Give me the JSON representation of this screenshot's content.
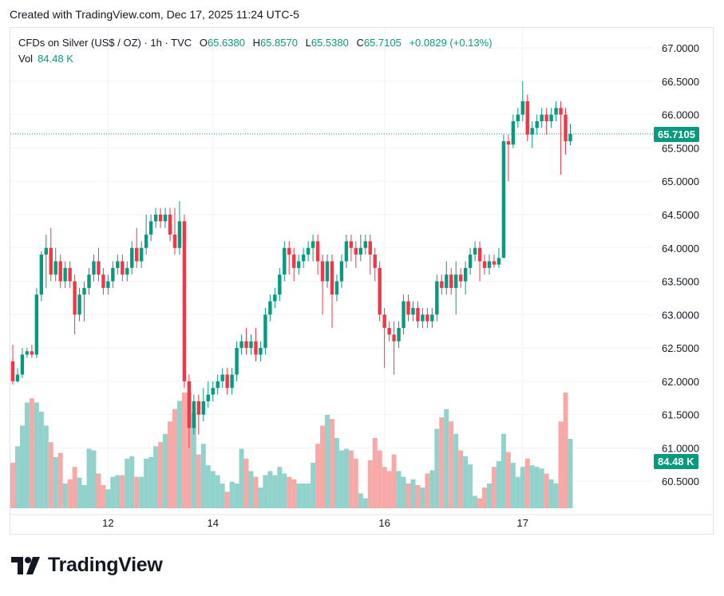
{
  "header": {
    "created": "Created with TradingView.com, Dec 17, 2025 11:24 UTC-5"
  },
  "legend": {
    "symbol": "CFDs on Silver (US$ / OZ) · 1h · TVC",
    "o_label": "O",
    "o_value": "65.6380",
    "h_label": "H",
    "h_value": "65.8570",
    "l_label": "L",
    "l_value": "65.5380",
    "c_label": "C",
    "c_value": "65.7105",
    "change": "+0.0829 (+0.13%)",
    "vol_label": "Vol",
    "vol_value": "84.48 K"
  },
  "badges": {
    "price": "65.7105",
    "volume": "84.48 K"
  },
  "footer": {
    "brand": "TradingView"
  },
  "colors": {
    "up": "#089981",
    "down": "#f23645",
    "up_vol": "#92d2cc",
    "down_vol": "#f7a9a7",
    "grid": "#f0f3fa",
    "text": "#131722"
  },
  "chart_data": {
    "type": "candlestick",
    "title": "CFDs on Silver (US$ / OZ) · 1h · TVC",
    "ylim": [
      60.0,
      67.3
    ],
    "y_ticks": [
      "60.5000",
      "61.0000",
      "61.5000",
      "62.0000",
      "62.5000",
      "63.0000",
      "63.5000",
      "64.0000",
      "64.5000",
      "65.0000",
      "65.5000",
      "66.0000",
      "66.5000",
      "67.0000"
    ],
    "x_ticks": [
      {
        "label": "12",
        "index": 20
      },
      {
        "label": "14",
        "index": 42
      },
      {
        "label": "16",
        "index": 78
      },
      {
        "label": "17",
        "index": 107
      }
    ],
    "last_price": 65.7105,
    "volume_max_k": 140,
    "candles": [
      [
        62.3,
        62.0,
        62.55,
        61.95,
        55
      ],
      [
        62.0,
        62.1,
        62.2,
        61.98,
        75
      ],
      [
        62.1,
        62.4,
        62.5,
        62.05,
        100
      ],
      [
        62.4,
        62.45,
        62.5,
        62.35,
        128
      ],
      [
        62.45,
        62.4,
        62.55,
        62.35,
        133
      ],
      [
        62.4,
        63.3,
        63.4,
        62.35,
        128
      ],
      [
        63.3,
        63.9,
        63.95,
        63.2,
        117
      ],
      [
        63.9,
        64.0,
        64.2,
        63.4,
        100
      ],
      [
        64.0,
        63.6,
        64.3,
        63.5,
        80
      ],
      [
        63.6,
        63.8,
        64.0,
        63.5,
        62
      ],
      [
        63.8,
        63.5,
        63.9,
        63.4,
        67
      ],
      [
        63.5,
        63.7,
        63.8,
        63.4,
        30
      ],
      [
        63.7,
        63.5,
        63.8,
        63.4,
        35
      ],
      [
        63.5,
        63.0,
        63.6,
        62.7,
        50
      ],
      [
        63.0,
        63.3,
        63.4,
        62.9,
        37
      ],
      [
        63.3,
        63.4,
        63.5,
        62.9,
        28
      ],
      [
        63.4,
        63.6,
        63.7,
        63.3,
        72
      ],
      [
        63.6,
        63.8,
        63.9,
        63.5,
        70
      ],
      [
        63.8,
        63.6,
        64.0,
        63.5,
        42
      ],
      [
        63.6,
        63.4,
        63.7,
        63.3,
        28
      ],
      [
        63.4,
        63.5,
        63.6,
        63.3,
        23
      ],
      [
        63.5,
        63.7,
        63.8,
        63.4,
        38
      ],
      [
        63.7,
        63.8,
        63.9,
        63.6,
        40
      ],
      [
        63.8,
        63.6,
        63.9,
        63.5,
        40
      ],
      [
        63.6,
        63.7,
        63.8,
        63.5,
        60
      ],
      [
        63.7,
        64.0,
        64.1,
        63.6,
        63
      ],
      [
        64.0,
        63.8,
        64.3,
        63.7,
        38
      ],
      [
        63.8,
        64.0,
        64.1,
        63.7,
        38
      ],
      [
        64.0,
        64.2,
        64.5,
        63.9,
        60
      ],
      [
        64.2,
        64.4,
        64.5,
        64.1,
        62
      ],
      [
        64.4,
        64.5,
        64.6,
        64.3,
        75
      ],
      [
        64.5,
        64.4,
        64.6,
        64.3,
        80
      ],
      [
        64.4,
        64.5,
        64.6,
        64.3,
        90
      ],
      [
        64.5,
        64.2,
        64.6,
        64.1,
        105
      ],
      [
        64.2,
        64.0,
        64.6,
        63.9,
        120
      ],
      [
        64.0,
        64.4,
        64.7,
        63.9,
        130
      ],
      [
        64.4,
        62.0,
        64.5,
        61.9,
        140
      ],
      [
        62.0,
        61.3,
        62.1,
        61.0,
        140
      ],
      [
        61.3,
        61.7,
        61.8,
        61.2,
        115
      ],
      [
        61.7,
        61.5,
        61.8,
        61.2,
        65
      ],
      [
        61.5,
        61.7,
        61.9,
        61.4,
        78
      ],
      [
        61.7,
        61.8,
        62.0,
        61.6,
        52
      ],
      [
        61.8,
        61.9,
        62.0,
        61.7,
        45
      ],
      [
        61.9,
        62.0,
        62.1,
        61.8,
        40
      ],
      [
        62.0,
        62.1,
        62.2,
        61.9,
        30
      ],
      [
        62.1,
        61.9,
        62.2,
        61.8,
        20
      ],
      [
        61.9,
        62.1,
        62.2,
        61.8,
        32
      ],
      [
        62.1,
        62.5,
        62.6,
        62.0,
        30
      ],
      [
        62.5,
        62.6,
        62.7,
        62.4,
        72
      ],
      [
        62.6,
        62.5,
        62.8,
        62.4,
        60
      ],
      [
        62.5,
        62.6,
        62.7,
        62.4,
        45
      ],
      [
        62.6,
        62.4,
        62.8,
        62.3,
        38
      ],
      [
        62.4,
        62.5,
        62.6,
        62.3,
        25
      ],
      [
        62.5,
        63.0,
        63.1,
        62.4,
        40
      ],
      [
        63.0,
        63.2,
        63.3,
        62.9,
        45
      ],
      [
        63.2,
        63.3,
        63.4,
        63.1,
        40
      ],
      [
        63.3,
        63.6,
        63.7,
        63.2,
        50
      ],
      [
        63.6,
        64.0,
        64.1,
        63.5,
        42
      ],
      [
        64.0,
        63.9,
        64.1,
        63.6,
        38
      ],
      [
        63.9,
        63.7,
        64.0,
        63.5,
        35
      ],
      [
        63.7,
        63.8,
        63.9,
        63.6,
        30
      ],
      [
        63.8,
        63.9,
        64.0,
        63.7,
        30
      ],
      [
        63.9,
        64.0,
        64.1,
        63.8,
        30
      ],
      [
        64.0,
        64.1,
        64.2,
        63.8,
        55
      ],
      [
        64.1,
        63.8,
        64.2,
        63.6,
        78
      ],
      [
        63.8,
        63.5,
        63.9,
        63.0,
        100
      ],
      [
        63.5,
        63.8,
        63.9,
        63.4,
        113
      ],
      [
        63.8,
        63.3,
        63.9,
        62.8,
        108
      ],
      [
        63.3,
        63.5,
        63.6,
        63.2,
        85
      ],
      [
        63.5,
        63.8,
        63.9,
        63.4,
        70
      ],
      [
        63.8,
        64.1,
        64.2,
        63.7,
        72
      ],
      [
        64.1,
        64.0,
        64.2,
        63.8,
        70
      ],
      [
        64.0,
        63.9,
        64.1,
        63.7,
        60
      ],
      [
        63.9,
        64.0,
        64.2,
        63.8,
        18
      ],
      [
        64.0,
        64.1,
        64.2,
        63.9,
        12
      ],
      [
        64.1,
        63.9,
        64.2,
        63.6,
        58
      ],
      [
        63.9,
        63.7,
        64.0,
        63.5,
        85
      ],
      [
        63.7,
        63.0,
        63.8,
        62.9,
        70
      ],
      [
        63.0,
        62.8,
        63.1,
        62.2,
        50
      ],
      [
        62.8,
        62.7,
        62.9,
        62.6,
        45
      ],
      [
        62.7,
        62.6,
        62.9,
        62.1,
        65
      ],
      [
        62.6,
        62.8,
        62.9,
        62.5,
        45
      ],
      [
        62.8,
        63.2,
        63.3,
        62.7,
        38
      ],
      [
        63.2,
        63.0,
        63.3,
        62.9,
        30
      ],
      [
        63.0,
        63.1,
        63.2,
        62.9,
        35
      ],
      [
        63.1,
        62.9,
        63.2,
        62.8,
        28
      ],
      [
        62.9,
        63.0,
        63.1,
        62.8,
        25
      ],
      [
        63.0,
        62.9,
        63.1,
        62.8,
        42
      ],
      [
        62.9,
        63.0,
        63.1,
        62.8,
        46
      ],
      [
        63.0,
        63.5,
        63.6,
        62.9,
        96
      ],
      [
        63.5,
        63.4,
        63.6,
        63.3,
        110
      ],
      [
        63.4,
        63.6,
        63.8,
        63.3,
        120
      ],
      [
        63.6,
        63.4,
        63.7,
        63.3,
        105
      ],
      [
        63.4,
        63.6,
        63.8,
        63.0,
        90
      ],
      [
        63.6,
        63.5,
        63.7,
        63.4,
        70
      ],
      [
        63.5,
        63.7,
        63.8,
        63.3,
        63
      ],
      [
        63.7,
        63.9,
        64.0,
        63.6,
        53
      ],
      [
        63.9,
        64.0,
        64.1,
        63.8,
        15
      ],
      [
        64.0,
        63.8,
        64.1,
        63.5,
        12
      ],
      [
        63.8,
        63.7,
        63.9,
        63.6,
        25
      ],
      [
        63.7,
        63.8,
        63.9,
        63.6,
        30
      ],
      [
        63.8,
        63.75,
        63.9,
        63.7,
        50
      ],
      [
        63.75,
        63.85,
        64.0,
        63.7,
        57
      ],
      [
        63.85,
        65.6,
        65.7,
        63.85,
        90
      ],
      [
        65.6,
        65.55,
        65.7,
        65.0,
        68
      ],
      [
        65.55,
        65.9,
        66.0,
        65.5,
        55
      ],
      [
        65.9,
        66.0,
        66.1,
        65.8,
        38
      ],
      [
        66.0,
        66.2,
        66.5,
        65.9,
        50
      ],
      [
        66.2,
        65.7,
        66.3,
        65.6,
        60
      ],
      [
        65.7,
        65.8,
        65.9,
        65.5,
        52
      ],
      [
        65.8,
        65.9,
        66.0,
        65.7,
        50
      ],
      [
        65.9,
        66.0,
        66.1,
        65.8,
        48
      ],
      [
        66.0,
        65.9,
        66.1,
        65.7,
        42
      ],
      [
        65.9,
        66.0,
        66.1,
        65.8,
        35
      ],
      [
        66.0,
        66.1,
        66.2,
        65.9,
        30
      ],
      [
        66.1,
        66.0,
        66.2,
        65.1,
        105
      ],
      [
        66.0,
        65.6,
        66.1,
        65.4,
        140
      ],
      [
        65.6,
        65.71,
        65.86,
        65.54,
        84
      ]
    ]
  }
}
